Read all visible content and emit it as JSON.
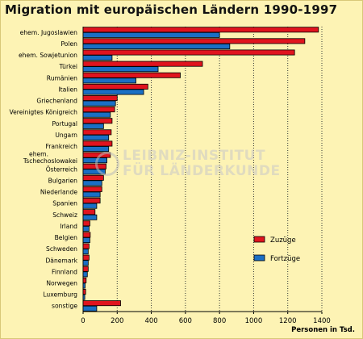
{
  "title": "Migration mit europäischen Ländern 1990-1997",
  "watermark": {
    "line1": "LEIBNIZ-INSTITUT",
    "line2": "FÜR LÄNDERKUNDE"
  },
  "chart_data": {
    "type": "bar",
    "orientation": "horizontal",
    "categories": [
      "ehem. Jugoslawien",
      "Polen",
      "ehem. Sowjetunion",
      "Türkei",
      "Rumänien",
      "Italien",
      "Griechenland",
      "Vereinigtes Königreich",
      "Portugal",
      "Ungarn",
      "Frankreich",
      "ehem. Tschechoslowakei",
      "Österreich",
      "Bulgarien",
      "Niederlande",
      "Spanien",
      "Schweiz",
      "Irland",
      "Belgien",
      "Schweden",
      "Dänemark",
      "Finnland",
      "Norwegen",
      "Luxemburg",
      "sonstige"
    ],
    "category_lines": [
      [
        "ehem. Jugoslawien"
      ],
      [
        "Polen"
      ],
      [
        "ehem. Sowjetunion"
      ],
      [
        "Türkei"
      ],
      [
        "Rumänien"
      ],
      [
        "Italien"
      ],
      [
        "Griechenland"
      ],
      [
        "Vereinigtes Königreich"
      ],
      [
        "Portugal"
      ],
      [
        "Ungarn"
      ],
      [
        "Frankreich"
      ],
      [
        "ehem.",
        "Tschechoslowakei"
      ],
      [
        "Österreich"
      ],
      [
        "Bulgarien"
      ],
      [
        "Niederlande"
      ],
      [
        "Spanien"
      ],
      [
        "Schweiz"
      ],
      [
        "Irland"
      ],
      [
        "Belgien"
      ],
      [
        "Schweden"
      ],
      [
        "Dänemark"
      ],
      [
        "Finnland"
      ],
      [
        "Norwegen"
      ],
      [
        "Luxemburg"
      ],
      [
        "sonstige"
      ]
    ],
    "series": [
      {
        "name": "Zuzüge",
        "color": "#e0141e",
        "values": [
          1380,
          1300,
          1240,
          700,
          570,
          380,
          200,
          185,
          170,
          165,
          170,
          160,
          135,
          120,
          110,
          100,
          70,
          40,
          42,
          35,
          35,
          30,
          18,
          15,
          220
        ]
      },
      {
        "name": "Fortzüge",
        "color": "#1a6fc4",
        "values": [
          800,
          860,
          170,
          440,
          310,
          355,
          190,
          160,
          120,
          150,
          150,
          140,
          130,
          110,
          100,
          80,
          80,
          35,
          40,
          30,
          30,
          25,
          12,
          10,
          80
        ]
      }
    ],
    "xlabel": "Personen in Tsd.",
    "xlim": [
      0,
      1400
    ],
    "xticks": [
      0,
      200,
      400,
      600,
      800,
      1000,
      1200,
      1400
    ],
    "grid": "vertical dotted",
    "legend_position": "bottom-right"
  }
}
